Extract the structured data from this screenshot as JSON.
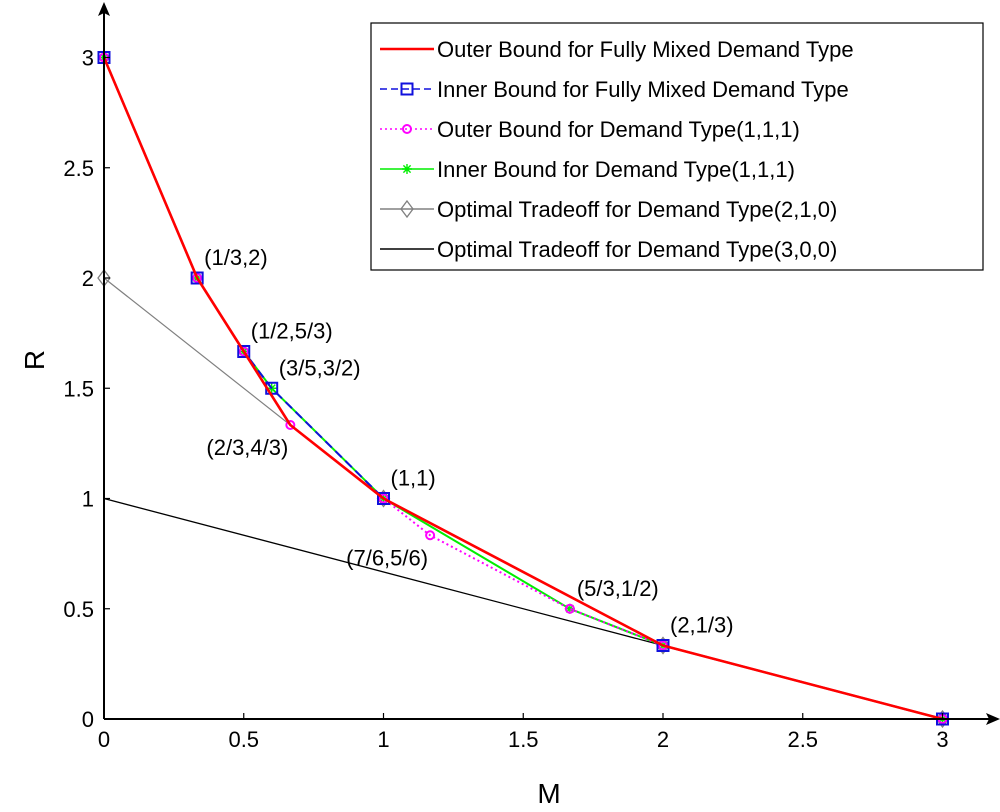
{
  "chart_data": {
    "type": "line",
    "title": "",
    "xlabel": "M",
    "ylabel": "R",
    "xlim": [
      0,
      3.15
    ],
    "ylim": [
      0,
      3.2
    ],
    "xticks": [
      0,
      0.5,
      1,
      1.5,
      2,
      2.5,
      3
    ],
    "xtick_labels": [
      "0",
      "0.5",
      "1",
      "1.5",
      "2",
      "2.5",
      "3"
    ],
    "yticks": [
      0,
      0.5,
      1,
      1.5,
      2,
      2.5,
      3
    ],
    "ytick_labels": [
      "0",
      "0.5",
      "1",
      "1.5",
      "2",
      "2.5",
      "3"
    ],
    "grid": false,
    "legend_position": "top-right",
    "series": [
      {
        "name": "Optimal Tradeoff for Demand Type(3,0,0)",
        "color": "#000000",
        "dash": "",
        "marker": "none",
        "x": [
          0,
          2,
          3
        ],
        "y": [
          1,
          0.3333,
          0
        ]
      },
      {
        "name": "Optimal Tradeoff for Demand Type(2,1,0)",
        "color": "#808080",
        "dash": "",
        "marker": "diamond",
        "x": [
          0,
          1,
          2,
          3
        ],
        "y": [
          2,
          1,
          0.3333,
          0
        ]
      },
      {
        "name": "Inner Bound for Demand Type(1,1,1)",
        "color": "#00ee00",
        "dash": "",
        "marker": "asterisk",
        "x": [
          0,
          0.3333,
          0.5,
          0.6,
          1,
          1.6667,
          2,
          3
        ],
        "y": [
          3,
          2,
          1.6667,
          1.5,
          1,
          0.5,
          0.3333,
          0
        ]
      },
      {
        "name": "Outer Bound for Demand Type(1,1,1)",
        "color": "#ff00ff",
        "dash": "2,3",
        "marker": "circle",
        "x": [
          0,
          0.3333,
          0.5,
          0.6667,
          1,
          1.1667,
          1.6667,
          2,
          3
        ],
        "y": [
          3,
          2,
          1.6667,
          1.3333,
          1,
          0.8333,
          0.5,
          0.3333,
          0
        ]
      },
      {
        "name": "Inner Bound for Fully Mixed Demand Type",
        "color": "#1010dd",
        "dash": "9,5",
        "marker": "square",
        "x": [
          0,
          0.3333,
          0.5,
          0.6,
          1,
          2,
          3
        ],
        "y": [
          3,
          2,
          1.6667,
          1.5,
          1,
          0.3333,
          0
        ]
      },
      {
        "name": "Outer Bound for Fully Mixed Demand Type",
        "color": "#ff0000",
        "dash": "",
        "marker": "none",
        "x": [
          0,
          0.3333,
          0.5,
          0.6667,
          1,
          2,
          3
        ],
        "y": [
          3,
          2,
          1.6667,
          1.3333,
          1,
          0.3333,
          0
        ]
      }
    ],
    "legend_order": [
      5,
      4,
      3,
      2,
      1,
      0
    ],
    "annotations": [
      {
        "text": "(1/3,2)",
        "x": 0.3333,
        "y": 2,
        "anchor": "above-right"
      },
      {
        "text": "(1/2,5/3)",
        "x": 0.5,
        "y": 1.6667,
        "anchor": "above-right"
      },
      {
        "text": "(3/5,3/2)",
        "x": 0.6,
        "y": 1.5,
        "anchor": "above-right"
      },
      {
        "text": "(2/3,4/3)",
        "x": 0.6667,
        "y": 1.3333,
        "anchor": "below-left"
      },
      {
        "text": "(1,1)",
        "x": 1,
        "y": 1,
        "anchor": "above-right"
      },
      {
        "text": "(7/6,5/6)",
        "x": 1.1667,
        "y": 0.8333,
        "anchor": "below-left"
      },
      {
        "text": "(5/3,1/2)",
        "x": 1.6667,
        "y": 0.5,
        "anchor": "above-right"
      },
      {
        "text": "(2,1/3)",
        "x": 2,
        "y": 0.3333,
        "anchor": "above-right"
      }
    ]
  }
}
